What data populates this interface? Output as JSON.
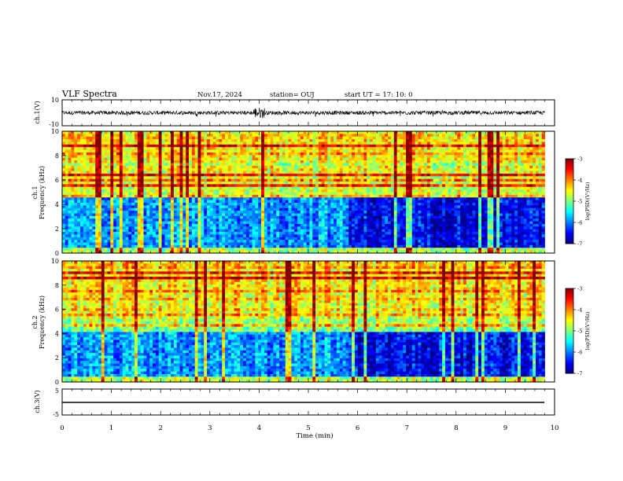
{
  "header": {
    "title": "VLF Spectra",
    "date": "Nov.17, 2024",
    "station": "station= OUJ",
    "start_ut": "start  UT =   17: 10: 0"
  },
  "chart_data": [
    {
      "type": "line",
      "panel": "ch1-waveform",
      "ylabel": "ch.1(V)",
      "ylim": [
        -10,
        10
      ],
      "yticks": [
        "10",
        "-10"
      ],
      "xlim": [
        0,
        9.8
      ],
      "description_values": {
        "baseline": 0,
        "typical_amplitude": 1.5,
        "burst_time_min": 4.0
      }
    },
    {
      "type": "heatmap",
      "panel": "ch1-spectrogram",
      "ylabel": "ch.1\nFrequency (kHz)",
      "ylim": [
        0,
        10
      ],
      "yticks": [
        "0",
        "2",
        "4",
        "6",
        "8",
        "10"
      ],
      "x": [
        0,
        9.8
      ],
      "colorbar": {
        "label": "log(PSD)(V²/Hz)",
        "range": [
          -7,
          -3
        ],
        "ticks": [
          "-3",
          "-4",
          "-5",
          "-6",
          "-7"
        ]
      },
      "features": {
        "quiet_band_khz": [
          0.5,
          4.5
        ],
        "quiet_band_strong_after_min": 5.8
      }
    },
    {
      "type": "heatmap",
      "panel": "ch2-spectrogram",
      "ylabel": "ch.2\nFrequency (kHz)",
      "ylim": [
        0,
        10
      ],
      "yticks": [
        "0",
        "2",
        "4",
        "6",
        "8",
        "10"
      ],
      "x": [
        0,
        9.8
      ],
      "colorbar": {
        "label": "log(PSD)(V²/Hz)",
        "range": [
          -7,
          -3
        ],
        "ticks": [
          "-3",
          "-4",
          "-5",
          "-6",
          "-7"
        ]
      },
      "features": {
        "quiet_band_khz": [
          0.5,
          4.2
        ],
        "quiet_band_strong_after_min": 5.8
      }
    },
    {
      "type": "line",
      "panel": "ch3-waveform",
      "ylabel": "ch.3(V)",
      "ylim": [
        -5,
        5
      ],
      "yticks": [
        "5",
        "-5"
      ],
      "values_constant": -1.5
    }
  ],
  "xaxis": {
    "label": "Time (min)",
    "ticks": [
      "0",
      "1",
      "2",
      "3",
      "4",
      "5",
      "6",
      "7",
      "8",
      "9",
      "10"
    ],
    "range": [
      0,
      10
    ]
  },
  "colors": {
    "jet": [
      "#00008f",
      "#0000ff",
      "#00ffff",
      "#7fff7f",
      "#ffff00",
      "#ff0000",
      "#800000"
    ]
  }
}
